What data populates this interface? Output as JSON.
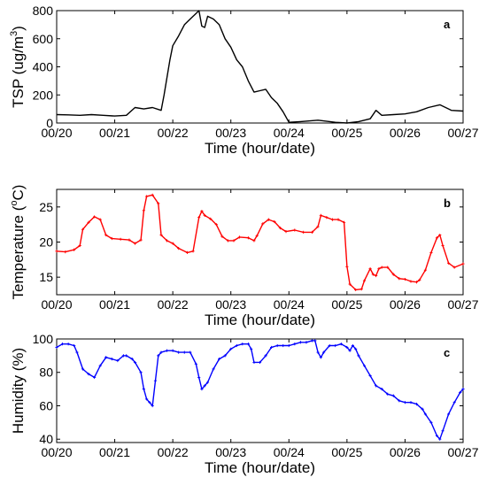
{
  "chart_data": [
    {
      "type": "line",
      "panel_label": "a",
      "ylabel": "TSP (ug/m3)",
      "ylabel_parts": {
        "base": "TSP (ug/m",
        "sup": "3",
        "tail": ")"
      },
      "xlabel": "Time (hour/date)",
      "xlim": [
        0,
        7
      ],
      "ylim": [
        0,
        800
      ],
      "xticks": [
        0,
        1,
        2,
        3,
        4,
        5,
        6,
        7
      ],
      "xtick_labels": [
        "00/20",
        "00/21",
        "00/22",
        "00/23",
        "00/24",
        "00/25",
        "00/26",
        "00/27"
      ],
      "yticks": [
        0,
        200,
        400,
        600,
        800
      ],
      "ytick_labels": [
        "0",
        "200",
        "400",
        "600",
        "800"
      ],
      "color": "#000000",
      "markers": false,
      "grid": false,
      "series": [
        {
          "x": [
            0,
            0.2,
            0.4,
            0.6,
            0.8,
            1.0,
            1.2,
            1.35,
            1.5,
            1.65,
            1.8,
            1.85,
            1.95,
            2.0,
            2.1,
            2.2,
            2.3,
            2.4,
            2.45,
            2.5,
            2.55,
            2.6,
            2.7,
            2.8,
            2.9,
            3.0,
            3.1,
            3.2,
            3.3,
            3.4,
            3.5,
            3.6,
            3.7,
            3.8,
            3.9,
            4.0,
            4.2,
            4.5,
            4.8,
            5.0,
            5.2,
            5.4,
            5.5,
            5.6,
            5.8,
            6.0,
            6.2,
            6.4,
            6.6,
            6.8,
            7.0
          ],
          "y": [
            60,
            58,
            55,
            60,
            55,
            50,
            55,
            110,
            100,
            110,
            90,
            200,
            450,
            550,
            620,
            700,
            740,
            780,
            800,
            690,
            680,
            760,
            740,
            700,
            600,
            540,
            450,
            400,
            300,
            220,
            230,
            240,
            180,
            140,
            80,
            5,
            10,
            20,
            5,
            0,
            10,
            30,
            90,
            55,
            60,
            65,
            80,
            110,
            130,
            90,
            85
          ]
        }
      ]
    },
    {
      "type": "line",
      "panel_label": "b",
      "ylabel": "Temperature (oC)",
      "ylabel_parts": {
        "base": "Temperature (",
        "sup": "o",
        "tail": "C)"
      },
      "xlabel": "Time (hour/date)",
      "xlim": [
        0,
        7
      ],
      "ylim": [
        12.5,
        27.5
      ],
      "xticks": [
        0,
        1,
        2,
        3,
        4,
        5,
        6,
        7
      ],
      "xtick_labels": [
        "00/20",
        "00/21",
        "00/22",
        "00/23",
        "00/24",
        "00/25",
        "00/26",
        "00/27"
      ],
      "yticks": [
        15,
        20,
        25
      ],
      "ytick_labels": [
        "15",
        "20",
        "25"
      ],
      "color": "#ff0000",
      "markers": true,
      "grid": false,
      "series": [
        {
          "x": [
            0,
            0.15,
            0.3,
            0.4,
            0.45,
            0.55,
            0.65,
            0.75,
            0.85,
            0.95,
            1.1,
            1.25,
            1.35,
            1.45,
            1.5,
            1.55,
            1.65,
            1.75,
            1.8,
            1.9,
            2.0,
            2.1,
            2.25,
            2.35,
            2.45,
            2.5,
            2.55,
            2.65,
            2.75,
            2.85,
            2.95,
            3.05,
            3.15,
            3.3,
            3.4,
            3.45,
            3.55,
            3.65,
            3.75,
            3.85,
            3.95,
            4.1,
            4.25,
            4.4,
            4.5,
            4.55,
            4.65,
            4.75,
            4.85,
            4.95,
            5.0,
            5.05,
            5.15,
            5.25,
            5.3,
            5.4,
            5.45,
            5.5,
            5.55,
            5.6,
            5.7,
            5.8,
            5.9,
            6.0,
            6.1,
            6.2,
            6.25,
            6.35,
            6.45,
            6.55,
            6.6,
            6.65,
            6.75,
            6.85,
            7.0
          ],
          "y": [
            18.7,
            18.6,
            18.9,
            19.5,
            21.8,
            22.8,
            23.6,
            23.2,
            21.0,
            20.5,
            20.4,
            20.3,
            19.8,
            20.3,
            24.5,
            26.5,
            26.7,
            25.5,
            21.0,
            20.2,
            19.8,
            19.1,
            18.5,
            18.7,
            23.5,
            24.4,
            23.8,
            23.3,
            22.5,
            20.8,
            20.2,
            20.2,
            20.7,
            20.6,
            20.2,
            20.9,
            22.6,
            23.2,
            22.9,
            22.0,
            21.5,
            21.7,
            21.4,
            21.4,
            22.2,
            23.8,
            23.5,
            23.2,
            23.2,
            22.8,
            16.5,
            14.0,
            13.2,
            13.3,
            14.5,
            16.2,
            15.4,
            15.2,
            16.2,
            16.4,
            16.4,
            15.4,
            14.8,
            14.7,
            14.4,
            14.3,
            14.6,
            16.0,
            18.5,
            20.6,
            21.0,
            19.5,
            17.0,
            16.4,
            16.9
          ]
        }
      ]
    },
    {
      "type": "line",
      "panel_label": "c",
      "ylabel": "Humidity (%)",
      "xlabel": "Time (hour/date)",
      "xlim": [
        0,
        7
      ],
      "ylim": [
        38,
        100
      ],
      "xticks": [
        0,
        1,
        2,
        3,
        4,
        5,
        6,
        7
      ],
      "xtick_labels": [
        "00/20",
        "00/21",
        "00/22",
        "00/23",
        "00/24",
        "00/25",
        "00/26",
        "00/27"
      ],
      "yticks": [
        40,
        60,
        80,
        100
      ],
      "ytick_labels": [
        "40",
        "60",
        "80",
        "100"
      ],
      "color": "#0000ff",
      "markers": true,
      "grid": false,
      "series": [
        {
          "x": [
            0,
            0.1,
            0.2,
            0.3,
            0.35,
            0.45,
            0.55,
            0.65,
            0.75,
            0.85,
            0.95,
            1.05,
            1.15,
            1.2,
            1.3,
            1.35,
            1.45,
            1.5,
            1.55,
            1.6,
            1.65,
            1.7,
            1.75,
            1.8,
            1.9,
            2.0,
            2.1,
            2.2,
            2.3,
            2.4,
            2.45,
            2.5,
            2.55,
            2.6,
            2.7,
            2.8,
            2.9,
            3.0,
            3.1,
            3.2,
            3.3,
            3.35,
            3.4,
            3.5,
            3.6,
            3.7,
            3.8,
            3.9,
            4.0,
            4.1,
            4.2,
            4.3,
            4.4,
            4.45,
            4.5,
            4.55,
            4.6,
            4.7,
            4.8,
            4.9,
            5.0,
            5.05,
            5.1,
            5.15,
            5.2,
            5.3,
            5.4,
            5.5,
            5.6,
            5.7,
            5.8,
            5.9,
            6.0,
            6.1,
            6.2,
            6.3,
            6.35,
            6.45,
            6.55,
            6.6,
            6.65,
            6.75,
            6.85,
            6.95,
            7.0
          ],
          "y": [
            95,
            97,
            97,
            96,
            92,
            82,
            79,
            77,
            84,
            89,
            88,
            87,
            90,
            90,
            88,
            86,
            80,
            70,
            64,
            62,
            60,
            75,
            90,
            92,
            93,
            93,
            92,
            92,
            92,
            85,
            77,
            70,
            72,
            74,
            82,
            88,
            90,
            94,
            96,
            97,
            97,
            94,
            86,
            86,
            90,
            95,
            96,
            96,
            96,
            97,
            98,
            98,
            99,
            99,
            92,
            89,
            92,
            96,
            96,
            97,
            95,
            93,
            96,
            94,
            90,
            84,
            78,
            72,
            70,
            67,
            66,
            63,
            62,
            62,
            61,
            58,
            55,
            50,
            42,
            40,
            45,
            55,
            62,
            68,
            70
          ]
        }
      ]
    }
  ]
}
